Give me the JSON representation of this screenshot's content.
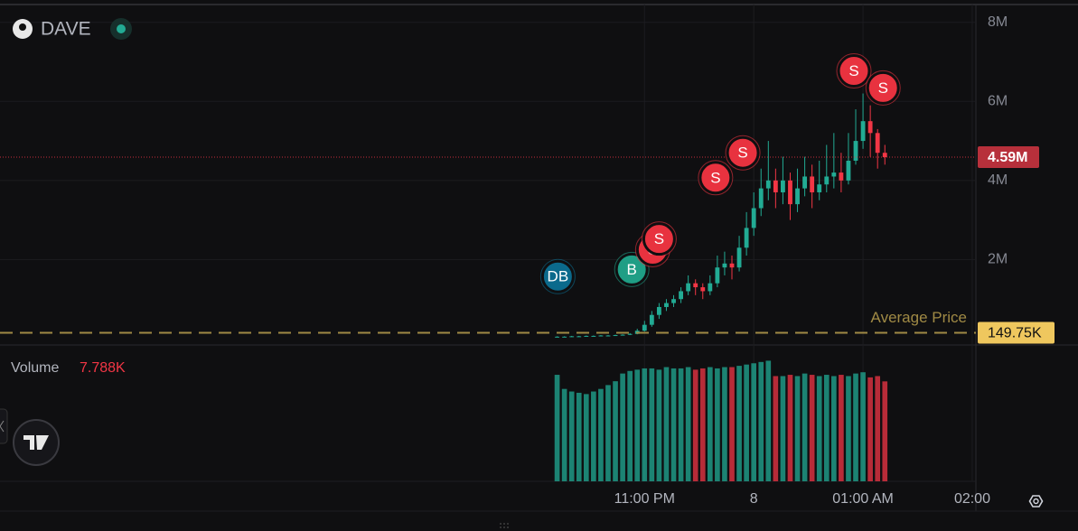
{
  "header": {
    "ticker": "DAVE"
  },
  "chart_data": {
    "type": "candlestick",
    "x": [
      12,
      16,
      20,
      24,
      28,
      32,
      36,
      40,
      44,
      48,
      52,
      56,
      60,
      64,
      68,
      72,
      76,
      80,
      84,
      88,
      92,
      96,
      100,
      104,
      108,
      112,
      116,
      120,
      124,
      128,
      132,
      136,
      140,
      144,
      148,
      152,
      156,
      160,
      164,
      168,
      172,
      176,
      180,
      184,
      188,
      192
    ],
    "open": [
      0.04,
      0.05,
      0.05,
      0.06,
      0.06,
      0.07,
      0.07,
      0.08,
      0.08,
      0.09,
      0.1,
      0.12,
      0.2,
      0.35,
      0.6,
      0.8,
      0.9,
      1.0,
      1.2,
      1.4,
      1.3,
      1.2,
      1.4,
      1.8,
      1.9,
      1.8,
      2.3,
      2.8,
      3.3,
      3.8,
      4.0,
      3.7,
      4.0,
      3.4,
      3.8,
      4.1,
      3.7,
      3.9,
      4.1,
      4.2,
      4.0,
      4.5,
      5.0,
      5.5,
      5.2,
      4.7
    ],
    "high": [
      0.06,
      0.06,
      0.07,
      0.07,
      0.08,
      0.08,
      0.09,
      0.09,
      0.1,
      0.11,
      0.14,
      0.25,
      0.45,
      0.7,
      0.9,
      1.0,
      1.1,
      1.3,
      1.6,
      1.5,
      1.4,
      1.6,
      2.1,
      2.2,
      2.1,
      2.6,
      3.2,
      3.7,
      4.3,
      5.0,
      4.3,
      4.6,
      4.2,
      4.3,
      4.6,
      4.4,
      4.5,
      4.9,
      5.2,
      4.7,
      5.2,
      5.8,
      6.2,
      5.9,
      5.3,
      4.9
    ],
    "low": [
      0.03,
      0.04,
      0.04,
      0.05,
      0.05,
      0.06,
      0.06,
      0.07,
      0.07,
      0.08,
      0.09,
      0.11,
      0.18,
      0.3,
      0.5,
      0.7,
      0.8,
      0.9,
      1.1,
      1.1,
      1.0,
      1.1,
      1.3,
      1.6,
      1.5,
      1.7,
      2.1,
      2.6,
      3.1,
      3.5,
      3.3,
      3.4,
      3.0,
      3.2,
      3.6,
      3.3,
      3.5,
      3.7,
      3.8,
      3.7,
      3.9,
      4.4,
      4.8,
      4.6,
      4.3,
      4.4
    ],
    "close": [
      0.05,
      0.05,
      0.06,
      0.06,
      0.07,
      0.07,
      0.08,
      0.08,
      0.09,
      0.1,
      0.12,
      0.2,
      0.35,
      0.6,
      0.8,
      0.9,
      1.0,
      1.2,
      1.4,
      1.3,
      1.2,
      1.4,
      1.8,
      1.9,
      1.8,
      2.3,
      2.8,
      3.3,
      3.8,
      4.0,
      3.7,
      4.0,
      3.4,
      3.8,
      4.1,
      3.7,
      3.9,
      4.1,
      4.2,
      4.0,
      4.5,
      5.0,
      5.5,
      5.2,
      4.7,
      4.59
    ],
    "volume": [
      8.3,
      7.2,
      7.0,
      6.9,
      6.8,
      7.0,
      7.2,
      7.5,
      7.8,
      8.4,
      8.6,
      8.7,
      8.8,
      8.8,
      8.7,
      8.9,
      8.8,
      8.8,
      8.9,
      8.7,
      8.8,
      8.9,
      8.8,
      8.9,
      8.9,
      9.0,
      9.1,
      9.2,
      9.3,
      9.4,
      8.2,
      8.2,
      8.3,
      8.2,
      8.4,
      8.3,
      8.2,
      8.3,
      8.2,
      8.3,
      8.2,
      8.4,
      8.5,
      8.1,
      8.2,
      7.788
    ],
    "up_color": "#22ab94",
    "down_color": "#f23645",
    "xlim": [
      -294,
      242
    ],
    "xticks": [
      {
        "value": 60,
        "label": "11:00 PM"
      },
      {
        "value": 120,
        "label": "8"
      },
      {
        "value": 180,
        "label": "01:00 AM"
      },
      {
        "value": 240,
        "label": "02:00"
      }
    ],
    "ylim": [
      0,
      8.45
    ],
    "yticks": [
      {
        "value": 2,
        "label": "2M"
      },
      {
        "value": 4,
        "label": "4M"
      },
      {
        "value": 6,
        "label": "6M"
      },
      {
        "value": 8,
        "label": "8M"
      }
    ],
    "volume_ylim": [
      0,
      9.5
    ],
    "volume_title": "Volume",
    "volume_value": {
      "value": 7.788,
      "label": "7.788K"
    },
    "current_price": {
      "value": 4.59,
      "label": "4.59M"
    },
    "average_price": {
      "title": "Average Price",
      "value": 0.14975,
      "label": "149.75K"
    },
    "markers": [
      {
        "label": "DB",
        "x": 12.4,
        "y": 1.57,
        "color": "#0b6a8c"
      },
      {
        "label": "B",
        "x": 53,
        "y": 1.75,
        "color": "#1f9e85"
      },
      {
        "label": "S",
        "x": 64.5,
        "y": 2.25,
        "color": "#e8323f"
      },
      {
        "label": "S",
        "x": 68,
        "y": 2.52,
        "color": "#e8323f"
      },
      {
        "label": "S",
        "x": 99,
        "y": 4.07,
        "color": "#e8323f"
      },
      {
        "label": "S",
        "x": 114,
        "y": 4.7,
        "color": "#e8323f"
      },
      {
        "label": "S",
        "x": 175,
        "y": 6.77,
        "color": "#e8323f"
      },
      {
        "label": "S",
        "x": 191,
        "y": 6.34,
        "color": "#e8323f"
      }
    ],
    "grid": true
  }
}
